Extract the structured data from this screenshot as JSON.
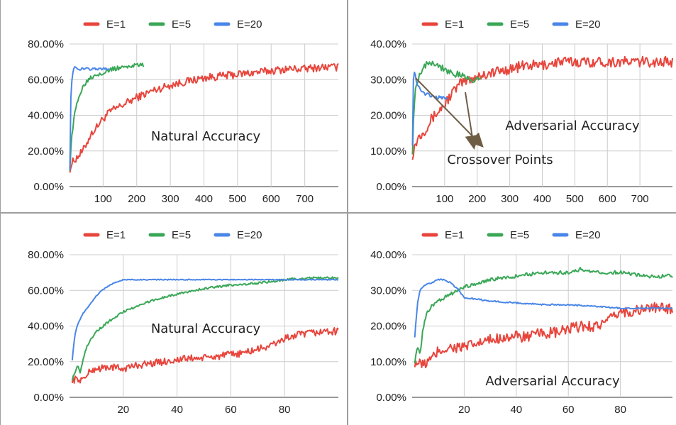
{
  "colors": {
    "E=1": "#e8453c",
    "E=5": "#3aa757",
    "E=20": "#4a86e8",
    "arrow": "#6e5d45"
  },
  "chart_data": [
    {
      "type": "line",
      "id": "top-left",
      "title": "",
      "annotation": "Natural Accuracy",
      "legend": [
        "E=1",
        "E=5",
        "E=20"
      ],
      "legend_position": "top",
      "grid": true,
      "xlim": [
        0,
        800
      ],
      "ylim": [
        0,
        80
      ],
      "x_ticks": [
        100,
        200,
        300,
        400,
        500,
        600,
        700
      ],
      "y_tick_labels": [
        "80.00%",
        "60.00%",
        "40.00%",
        "20.00%",
        "0.00%"
      ],
      "series": [
        {
          "name": "E=1",
          "noise": 2.2,
          "x": [
            1,
            10,
            20,
            30,
            40,
            50,
            60,
            70,
            80,
            90,
            100,
            120,
            150,
            200,
            250,
            300,
            350,
            400,
            450,
            500,
            550,
            600,
            650,
            700,
            750,
            800
          ],
          "y": [
            10,
            14,
            16,
            18,
            20,
            24,
            28,
            31,
            33,
            36,
            38,
            42,
            45,
            50,
            54,
            57,
            59,
            61,
            62,
            63,
            64,
            65,
            66,
            66,
            67,
            67
          ]
        },
        {
          "name": "E=5",
          "noise": 1.2,
          "x": [
            1,
            5,
            10,
            15,
            20,
            30,
            40,
            50,
            60,
            80,
            100,
            130,
            160,
            190,
            220
          ],
          "y": [
            10,
            25,
            33,
            40,
            45,
            52,
            56,
            59,
            61,
            63,
            64,
            66,
            67,
            68,
            68
          ]
        },
        {
          "name": "E=20",
          "noise": 0.7,
          "x": [
            1,
            2,
            3,
            5,
            8,
            12,
            15,
            20,
            30,
            40,
            60,
            80,
            100,
            120
          ],
          "y": [
            10,
            30,
            45,
            55,
            62,
            66,
            67,
            66,
            66,
            66,
            66,
            66,
            66,
            66
          ]
        }
      ]
    },
    {
      "type": "line",
      "id": "top-right",
      "title": "",
      "annotation": "Adversarial Accuracy",
      "annotation2": "Crossover Points",
      "legend": [
        "E=1",
        "E=5",
        "E=20"
      ],
      "legend_position": "top",
      "grid": true,
      "xlim": [
        0,
        800
      ],
      "ylim": [
        0,
        40
      ],
      "x_ticks": [
        100,
        200,
        300,
        400,
        500,
        600,
        700
      ],
      "y_tick_labels": [
        "40.00%",
        "30.00%",
        "20.00%",
        "10.00%",
        "0.00%"
      ],
      "series": [
        {
          "name": "E=1",
          "noise": 1.5,
          "x": [
            1,
            10,
            20,
            30,
            40,
            60,
            80,
            100,
            120,
            150,
            200,
            250,
            300,
            350,
            400,
            450,
            500,
            600,
            700,
            800
          ],
          "y": [
            9,
            12,
            14,
            15,
            16,
            19,
            21,
            23,
            26,
            29,
            31,
            32,
            33,
            34,
            34,
            35,
            35,
            35,
            35,
            35
          ]
        },
        {
          "name": "E=5",
          "noise": 1.0,
          "x": [
            1,
            5,
            10,
            20,
            30,
            40,
            50,
            60,
            80,
            100,
            120,
            150,
            180,
            210
          ],
          "y": [
            10,
            22,
            27,
            31,
            33,
            34,
            35,
            35,
            34,
            33,
            32,
            31,
            30,
            30
          ]
        },
        {
          "name": "E=20",
          "noise": 0.5,
          "x": [
            1,
            3,
            5,
            8,
            12,
            20,
            30,
            40,
            60,
            80,
            100,
            110
          ],
          "y": [
            12,
            28,
            32,
            32,
            30,
            28,
            27,
            26,
            25.5,
            25,
            25,
            25
          ]
        }
      ]
    },
    {
      "type": "line",
      "id": "bottom-left",
      "title": "",
      "annotation": "Natural Accuracy",
      "legend": [
        "E=1",
        "E=5",
        "E=20"
      ],
      "legend_position": "top",
      "grid": true,
      "xlim": [
        0,
        100
      ],
      "ylim": [
        0,
        80
      ],
      "x_ticks": [
        20,
        40,
        60,
        80
      ],
      "y_tick_labels": [
        "80.00%",
        "60.00%",
        "40.00%",
        "20.00%",
        "0.00%"
      ],
      "series": [
        {
          "name": "E=1",
          "noise": 2.0,
          "x": [
            1,
            5,
            8,
            10,
            15,
            20,
            25,
            30,
            35,
            40,
            45,
            50,
            55,
            60,
            65,
            70,
            75,
            80,
            85,
            90,
            95,
            100
          ],
          "y": [
            10,
            10,
            15,
            16,
            17,
            16,
            18,
            19,
            20,
            21,
            22,
            22,
            23,
            24,
            25,
            27,
            29,
            33,
            35,
            36,
            37,
            37
          ]
        },
        {
          "name": "E=5",
          "noise": 0.6,
          "x": [
            1,
            2,
            3,
            4,
            6,
            8,
            10,
            15,
            20,
            25,
            30,
            40,
            50,
            60,
            70,
            80,
            90,
            100
          ],
          "y": [
            10,
            14,
            18,
            14,
            27,
            33,
            37,
            43,
            48,
            51,
            54,
            58,
            61,
            63,
            64,
            66,
            67,
            67
          ]
        },
        {
          "name": "E=20",
          "noise": 0.25,
          "x": [
            1,
            2,
            3,
            5,
            8,
            10,
            12,
            15,
            18,
            20,
            25,
            30,
            40,
            60,
            80,
            100
          ],
          "y": [
            21,
            35,
            41,
            47,
            53,
            57,
            60,
            63,
            65,
            66,
            66,
            66,
            66,
            66,
            66,
            66
          ]
        }
      ]
    },
    {
      "type": "line",
      "id": "bottom-right",
      "title": "",
      "annotation": "Adversarial Accuracy",
      "legend": [
        "E=1",
        "E=5",
        "E=20"
      ],
      "legend_position": "top",
      "grid": true,
      "xlim": [
        0,
        100
      ],
      "ylim": [
        0,
        40
      ],
      "x_ticks": [
        20,
        40,
        60,
        80
      ],
      "y_tick_labels": [
        "40.00%",
        "30.00%",
        "20.00%",
        "10.00%",
        "0.00%"
      ],
      "series": [
        {
          "name": "E=1",
          "noise": 1.6,
          "x": [
            1,
            4,
            6,
            8,
            10,
            15,
            20,
            25,
            30,
            35,
            40,
            45,
            50,
            55,
            60,
            65,
            70,
            75,
            78,
            80,
            85,
            90,
            95,
            100
          ],
          "y": [
            10,
            9,
            10,
            11,
            13,
            14,
            14,
            15,
            16,
            17,
            17,
            17,
            18,
            18,
            19,
            20,
            20,
            21,
            23,
            24,
            24,
            25,
            25,
            25
          ]
        },
        {
          "name": "E=5",
          "noise": 0.5,
          "x": [
            1,
            2,
            3,
            4,
            5,
            6,
            8,
            10,
            15,
            20,
            25,
            30,
            40,
            50,
            60,
            65,
            70,
            80,
            90,
            100
          ],
          "y": [
            10,
            14,
            12,
            18,
            22,
            24,
            26,
            27,
            29,
            31,
            32,
            33,
            34,
            35,
            35,
            36,
            35,
            35,
            34,
            34
          ]
        },
        {
          "name": "E=20",
          "noise": 0.2,
          "x": [
            1,
            2,
            3,
            4,
            5,
            7,
            10,
            12,
            15,
            18,
            20,
            25,
            30,
            40,
            50,
            60,
            70,
            80,
            90,
            100
          ],
          "y": [
            17,
            26,
            30,
            31,
            31.5,
            32,
            33,
            33,
            32,
            30,
            28,
            27.5,
            27,
            26.5,
            26,
            26,
            25.5,
            25,
            25,
            25
          ]
        }
      ]
    }
  ]
}
